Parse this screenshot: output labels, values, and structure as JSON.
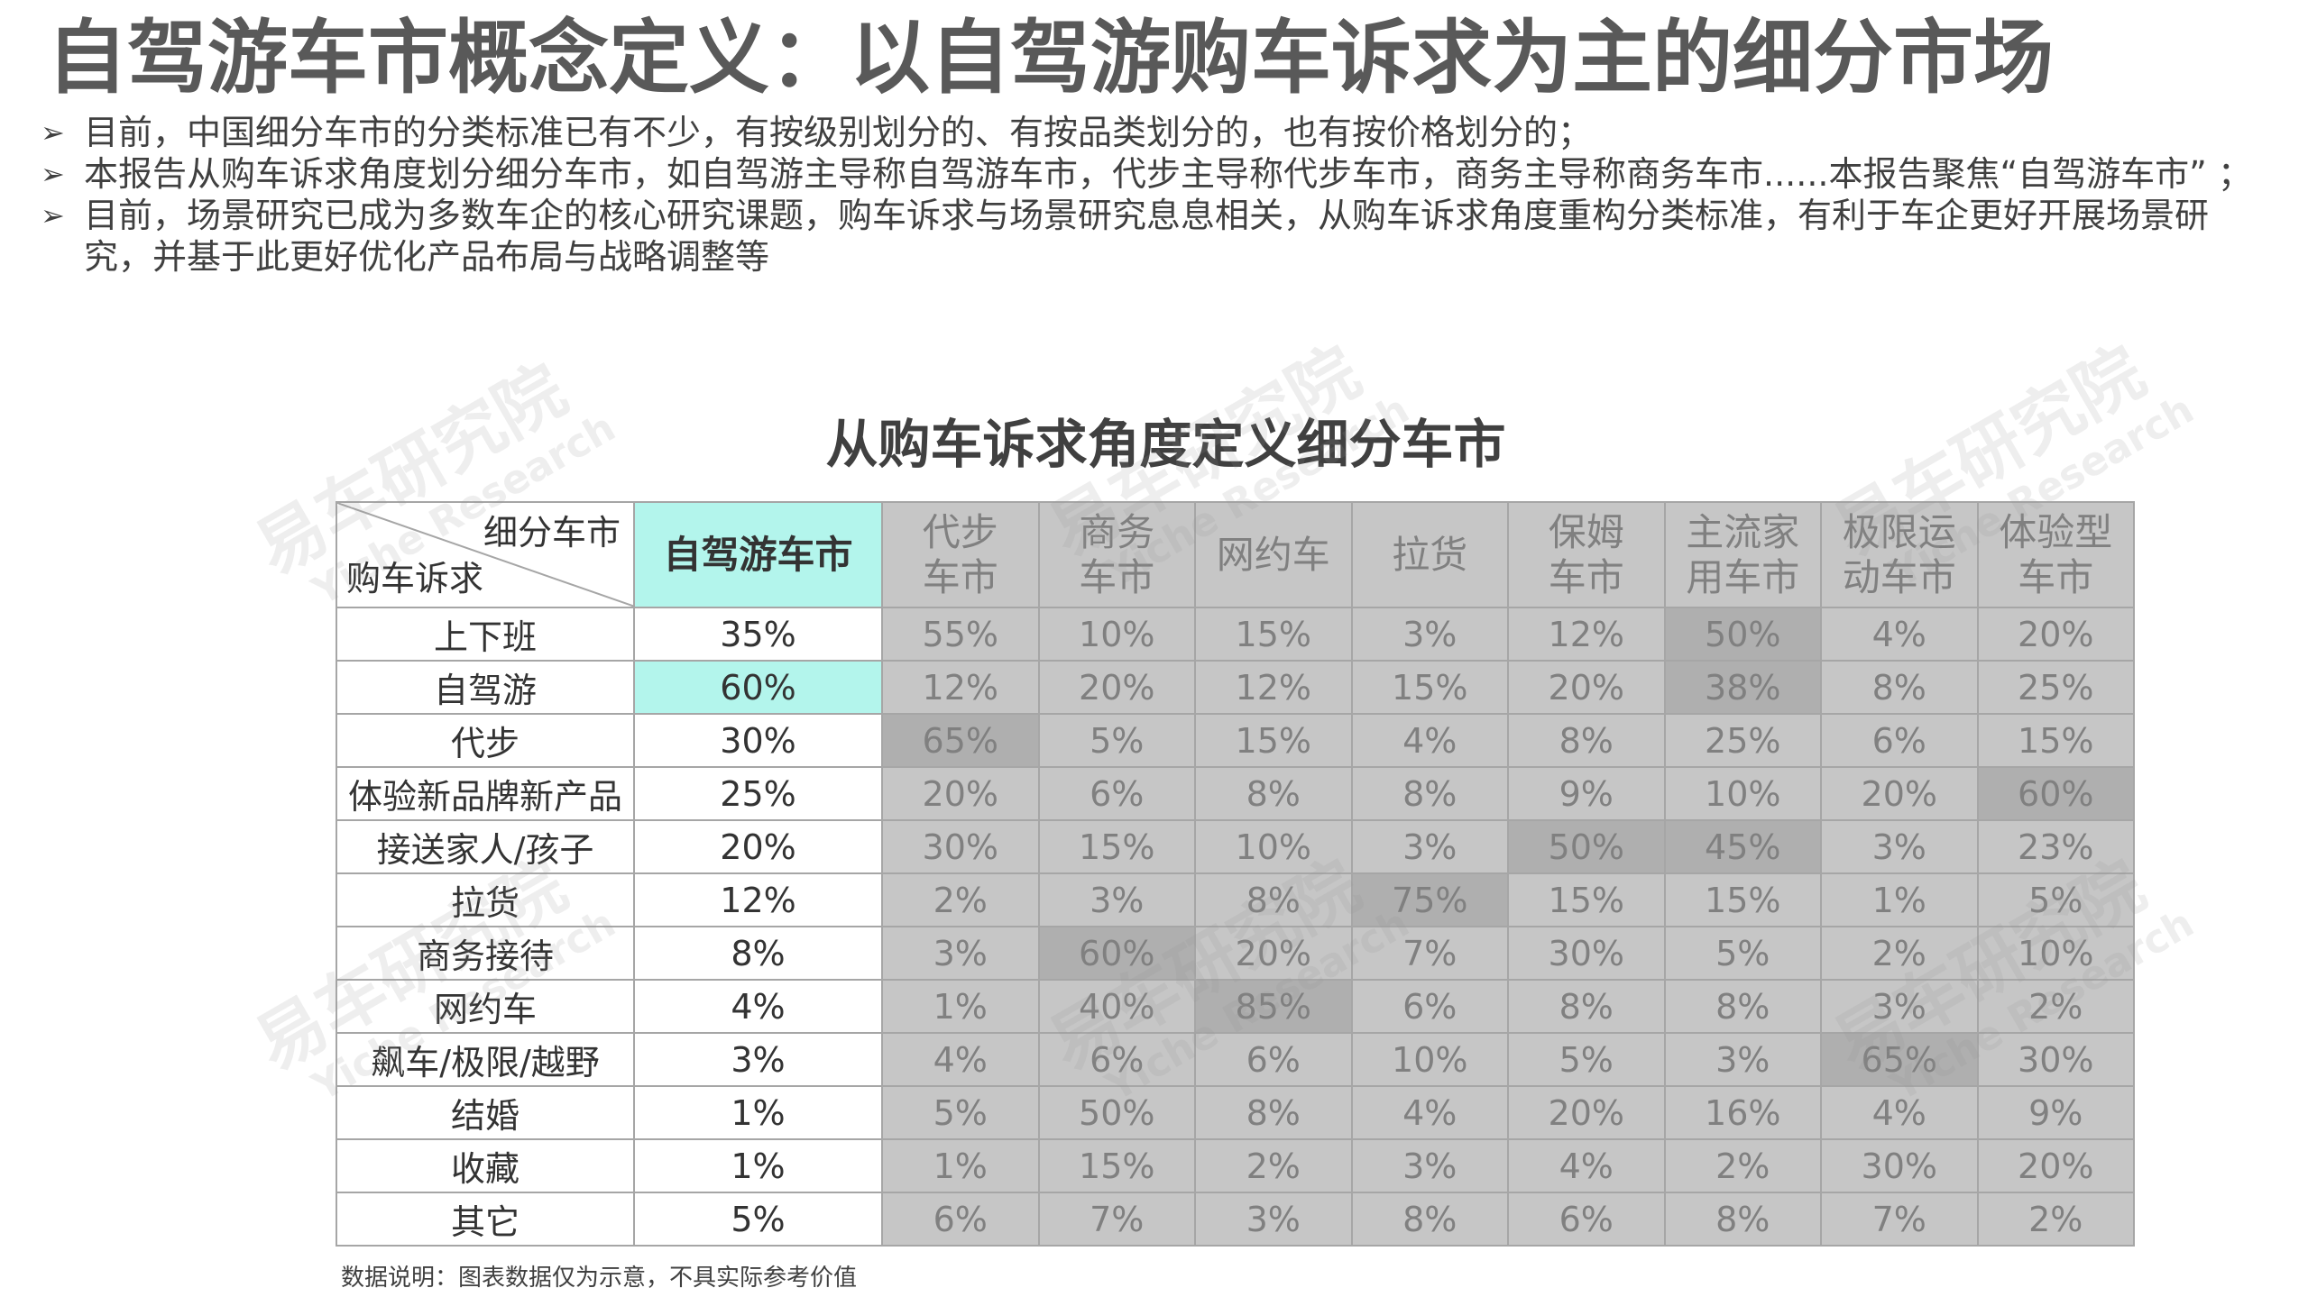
{
  "title": "自驾游车市概念定义：以自驾游购车诉求为主的细分市场",
  "bullets": [
    "目前，中国细分车市的分类标准已有不少，有按级别划分的、有按品类划分的，也有按价格划分的；",
    "本报告从购车诉求角度划分细分车市，如自驾游主导称自驾游车市，代步主导称代步车市，商务主导称商务车市......本报告聚焦“自驾游车市” ；",
    "目前，场景研究已成为多数车企的核心研究课题，购车诉求与场景研究息息相关，从购车诉求角度重构分类标准，有利于车企更好开展场景研究，并基于此更好优化产品布局与战略调整等"
  ],
  "watermark": {
    "cn": "易车研究院",
    "en": "Yiche Research"
  },
  "colors": {
    "focus_highlight": "#b3f5ec",
    "grey_cell": "#c6c6c6",
    "grey_highlight": "#afafaf"
  },
  "chart_data": {
    "type": "table",
    "title": "从购车诉求角度定义细分车市",
    "corner": {
      "column_header": "细分车市",
      "row_header": "购车诉求"
    },
    "columns": [
      {
        "name": "自驾游车市",
        "lines": [
          "自驾游车市"
        ],
        "focus": true
      },
      {
        "name": "代步车市",
        "lines": [
          "代步",
          "车市"
        ]
      },
      {
        "name": "商务车市",
        "lines": [
          "商务",
          "车市"
        ]
      },
      {
        "name": "网约车",
        "lines": [
          "网约车"
        ]
      },
      {
        "name": "拉货",
        "lines": [
          "拉货"
        ]
      },
      {
        "name": "保姆车市",
        "lines": [
          "保姆",
          "车市"
        ]
      },
      {
        "name": "主流家用车市",
        "lines": [
          "主流家",
          "用车市"
        ]
      },
      {
        "name": "极限运动车市",
        "lines": [
          "极限运",
          "动车市"
        ]
      },
      {
        "name": "体验型车市",
        "lines": [
          "体验型",
          "车市"
        ]
      }
    ],
    "rows": [
      {
        "label": "上下班",
        "values": [
          "35%",
          "55%",
          "10%",
          "15%",
          "3%",
          "12%",
          "50%",
          "4%",
          "20%"
        ],
        "highlight": [
          6
        ]
      },
      {
        "label": "自驾游",
        "values": [
          "60%",
          "12%",
          "20%",
          "12%",
          "15%",
          "20%",
          "38%",
          "8%",
          "25%"
        ],
        "highlight": [
          0,
          6
        ]
      },
      {
        "label": "代步",
        "values": [
          "30%",
          "65%",
          "5%",
          "15%",
          "4%",
          "8%",
          "25%",
          "6%",
          "15%"
        ],
        "highlight": [
          1
        ]
      },
      {
        "label": "体验新品牌新产品",
        "values": [
          "25%",
          "20%",
          "6%",
          "8%",
          "8%",
          "9%",
          "10%",
          "20%",
          "60%"
        ],
        "highlight": [
          8
        ]
      },
      {
        "label": "接送家人/孩子",
        "values": [
          "20%",
          "30%",
          "15%",
          "10%",
          "3%",
          "50%",
          "45%",
          "3%",
          "23%"
        ],
        "highlight": [
          5,
          6
        ]
      },
      {
        "label": "拉货",
        "values": [
          "12%",
          "2%",
          "3%",
          "8%",
          "75%",
          "15%",
          "15%",
          "1%",
          "5%"
        ],
        "highlight": [
          4
        ]
      },
      {
        "label": "商务接待",
        "values": [
          "8%",
          "3%",
          "60%",
          "20%",
          "7%",
          "30%",
          "5%",
          "2%",
          "10%"
        ],
        "highlight": [
          2
        ]
      },
      {
        "label": "网约车",
        "values": [
          "4%",
          "1%",
          "40%",
          "85%",
          "6%",
          "8%",
          "8%",
          "3%",
          "2%"
        ],
        "highlight": [
          3
        ]
      },
      {
        "label": "飙车/极限/越野",
        "values": [
          "3%",
          "4%",
          "6%",
          "6%",
          "10%",
          "5%",
          "3%",
          "65%",
          "30%"
        ],
        "highlight": [
          7
        ]
      },
      {
        "label": "结婚",
        "values": [
          "1%",
          "5%",
          "50%",
          "8%",
          "4%",
          "20%",
          "16%",
          "4%",
          "9%"
        ],
        "highlight": []
      },
      {
        "label": "收藏",
        "values": [
          "1%",
          "1%",
          "15%",
          "2%",
          "3%",
          "4%",
          "2%",
          "30%",
          "20%"
        ],
        "highlight": []
      },
      {
        "label": "其它",
        "values": [
          "5%",
          "6%",
          "7%",
          "3%",
          "8%",
          "6%",
          "8%",
          "7%",
          "2%"
        ],
        "highlight": []
      }
    ]
  },
  "note": "数据说明：图表数据仅为示意，不具实际参考价值"
}
